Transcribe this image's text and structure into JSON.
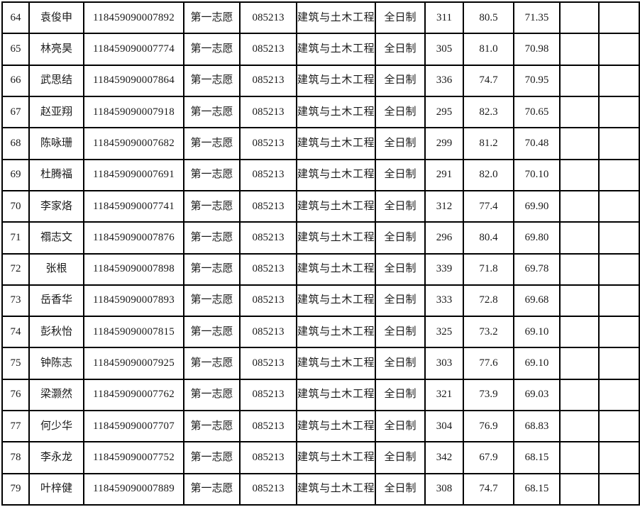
{
  "colors": {
    "border": "#000000",
    "text": "#1a1a1a",
    "background": "#ffffff"
  },
  "table": {
    "rows": [
      [
        "64",
        "袁俊申",
        "118459090007892",
        "第一志愿",
        "085213",
        "建筑与土木工程",
        "全日制",
        "311",
        "80.5",
        "71.35",
        "",
        ""
      ],
      [
        "65",
        "林亮昊",
        "118459090007774",
        "第一志愿",
        "085213",
        "建筑与土木工程",
        "全日制",
        "305",
        "81.0",
        "70.98",
        "",
        ""
      ],
      [
        "66",
        "武思结",
        "118459090007864",
        "第一志愿",
        "085213",
        "建筑与土木工程",
        "全日制",
        "336",
        "74.7",
        "70.95",
        "",
        ""
      ],
      [
        "67",
        "赵亚翔",
        "118459090007918",
        "第一志愿",
        "085213",
        "建筑与土木工程",
        "全日制",
        "295",
        "82.3",
        "70.65",
        "",
        ""
      ],
      [
        "68",
        "陈咏珊",
        "118459090007682",
        "第一志愿",
        "085213",
        "建筑与土木工程",
        "全日制",
        "299",
        "81.2",
        "70.48",
        "",
        ""
      ],
      [
        "69",
        "杜腾福",
        "118459090007691",
        "第一志愿",
        "085213",
        "建筑与土木工程",
        "全日制",
        "291",
        "82.0",
        "70.10",
        "",
        ""
      ],
      [
        "70",
        "李家烙",
        "118459090007741",
        "第一志愿",
        "085213",
        "建筑与土木工程",
        "全日制",
        "312",
        "77.4",
        "69.90",
        "",
        ""
      ],
      [
        "71",
        "禤志文",
        "118459090007876",
        "第一志愿",
        "085213",
        "建筑与土木工程",
        "全日制",
        "296",
        "80.4",
        "69.80",
        "",
        ""
      ],
      [
        "72",
        "张根",
        "118459090007898",
        "第一志愿",
        "085213",
        "建筑与土木工程",
        "全日制",
        "339",
        "71.8",
        "69.78",
        "",
        ""
      ],
      [
        "73",
        "岳香华",
        "118459090007893",
        "第一志愿",
        "085213",
        "建筑与土木工程",
        "全日制",
        "333",
        "72.8",
        "69.68",
        "",
        ""
      ],
      [
        "74",
        "彭秋怡",
        "118459090007815",
        "第一志愿",
        "085213",
        "建筑与土木工程",
        "全日制",
        "325",
        "73.2",
        "69.10",
        "",
        ""
      ],
      [
        "75",
        "钟陈志",
        "118459090007925",
        "第一志愿",
        "085213",
        "建筑与土木工程",
        "全日制",
        "303",
        "77.6",
        "69.10",
        "",
        ""
      ],
      [
        "76",
        "梁灏然",
        "118459090007762",
        "第一志愿",
        "085213",
        "建筑与土木工程",
        "全日制",
        "321",
        "73.9",
        "69.03",
        "",
        ""
      ],
      [
        "77",
        "何少华",
        "118459090007707",
        "第一志愿",
        "085213",
        "建筑与土木工程",
        "全日制",
        "304",
        "76.9",
        "68.83",
        "",
        ""
      ],
      [
        "78",
        "李永龙",
        "118459090007752",
        "第一志愿",
        "085213",
        "建筑与土木工程",
        "全日制",
        "342",
        "67.9",
        "68.15",
        "",
        ""
      ],
      [
        "79",
        "叶梓健",
        "118459090007889",
        "第一志愿",
        "085213",
        "建筑与土木工程",
        "全日制",
        "308",
        "74.7",
        "68.15",
        "",
        ""
      ]
    ]
  }
}
